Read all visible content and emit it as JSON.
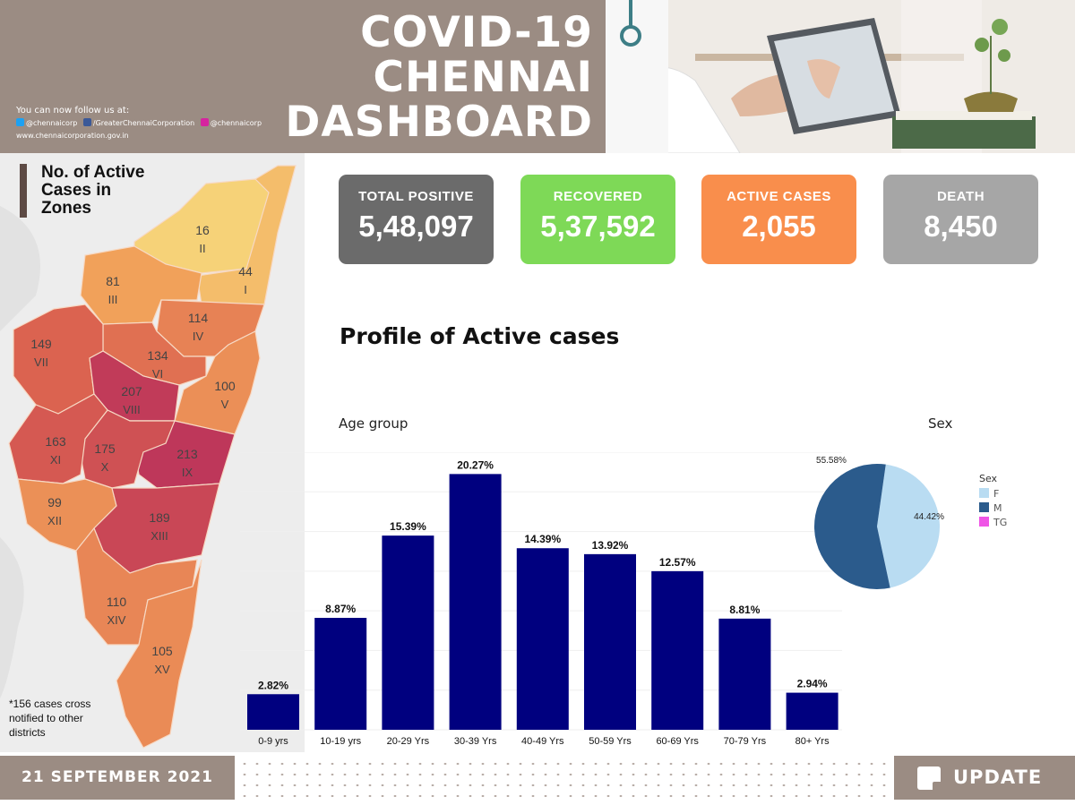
{
  "header": {
    "title_lines": [
      "COVID-19",
      "CHENNAI",
      "DASHBOARD"
    ],
    "follow_text": "You can now follow us at:",
    "twitter": "@chennaicorp",
    "facebook": "/GreaterChennaiCorporation",
    "instagram": "@chennaicorp",
    "website": "www.chennaicorporation.gov.in"
  },
  "map": {
    "title_lines": [
      "No. of Active",
      "Cases in",
      "Zones"
    ],
    "note_lines": [
      "*156 cases cross",
      "notified to other",
      "districts"
    ],
    "zones": [
      {
        "zone": "I",
        "cases": 44
      },
      {
        "zone": "II",
        "cases": 16
      },
      {
        "zone": "III",
        "cases": 81
      },
      {
        "zone": "IV",
        "cases": 114
      },
      {
        "zone": "V",
        "cases": 100
      },
      {
        "zone": "VI",
        "cases": 134
      },
      {
        "zone": "VII",
        "cases": 149
      },
      {
        "zone": "VIII",
        "cases": 207
      },
      {
        "zone": "IX",
        "cases": 213
      },
      {
        "zone": "X",
        "cases": 175
      },
      {
        "zone": "XI",
        "cases": 163
      },
      {
        "zone": "XII",
        "cases": 99
      },
      {
        "zone": "XIII",
        "cases": 189
      },
      {
        "zone": "XIV",
        "cases": 110
      },
      {
        "zone": "XV",
        "cases": 105
      }
    ]
  },
  "stats": [
    {
      "label": "TOTAL POSITIVE",
      "value": "5,48,097",
      "color": "#6b6b6b"
    },
    {
      "label": "RECOVERED",
      "value": "5,37,592",
      "color": "#7ed957"
    },
    {
      "label": "ACTIVE CASES",
      "value": "2,055",
      "color": "#f98e4c"
    },
    {
      "label": "DEATH",
      "value": "8,450",
      "color": "#a6a6a6"
    }
  ],
  "profile_title": "Profile of Active cases",
  "chart_data": [
    {
      "type": "bar",
      "title": "Age group",
      "categories": [
        "0-9 yrs",
        "10-19 yrs",
        "20-29 Yrs",
        "30-39 Yrs",
        "40-49 Yrs",
        "50-59 Yrs",
        "60-69 Yrs",
        "70-79 Yrs",
        "80+ Yrs"
      ],
      "values": [
        2.82,
        8.87,
        15.39,
        20.27,
        14.39,
        13.92,
        12.57,
        8.81,
        2.94
      ],
      "value_labels": [
        "2.82%",
        "8.87%",
        "15.39%",
        "20.27%",
        "14.39%",
        "13.92%",
        "12.57%",
        "8.81%",
        "2.94%"
      ],
      "unit": "%",
      "ylim": [
        0,
        22
      ],
      "grid": true,
      "bar_color": "#00007f"
    },
    {
      "type": "pie",
      "title": "Sex",
      "legend_title": "Sex",
      "legend_position": "right",
      "slices": [
        {
          "label": "F",
          "value": 44.42,
          "value_label": "44.42%",
          "color": "#b9dcf2"
        },
        {
          "label": "M",
          "value": 55.58,
          "value_label": "55.58%",
          "color": "#2b5b8c"
        },
        {
          "label": "TG",
          "value": 0,
          "value_label": "",
          "color": "#ef55e6"
        }
      ]
    }
  ],
  "footer": {
    "date": "21 SEPTEMBER 2021",
    "update_label": "UPDATE"
  }
}
